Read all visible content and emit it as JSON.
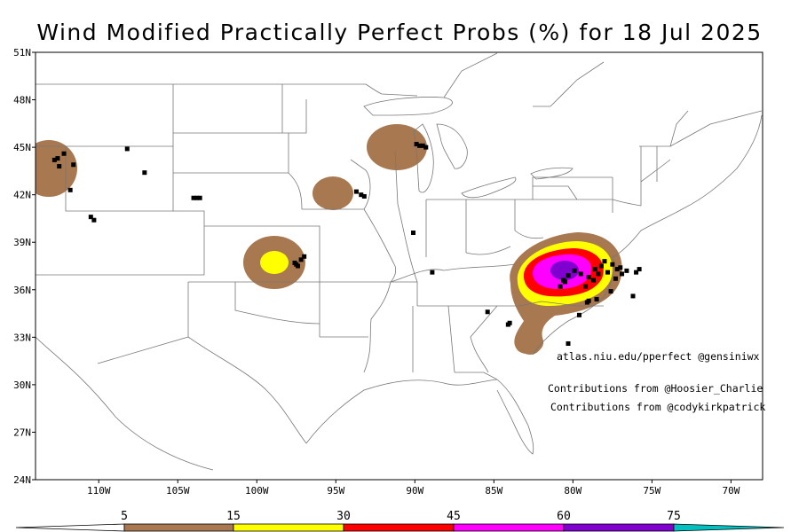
{
  "title": "Wind Modified Practically Perfect Probs (%) for 18 Jul 2025",
  "credits": {
    "site": "atlas.niu.edu/pperfect @gensiniwx",
    "contrib1": "Contributions from @Hoosier_Charlie",
    "contrib2": "Contributions from @codykirkpatrick"
  },
  "map": {
    "lat_ticks": [
      "51N",
      "48N",
      "45N",
      "42N",
      "39N",
      "36N",
      "33N",
      "30N",
      "27N",
      "24N"
    ],
    "lon_ticks": [
      "110W",
      "105W",
      "100W",
      "95W",
      "90W",
      "85W",
      "80W",
      "75W",
      "70W"
    ],
    "lon_range": [
      -114,
      -68
    ],
    "lat_range": [
      24,
      51
    ]
  },
  "colorbar": {
    "labels": [
      "5",
      "15",
      "30",
      "45",
      "60",
      "75"
    ],
    "colors": [
      "#a87850",
      "#ffff00",
      "#ff0000",
      "#ff00ff",
      "#8000d0",
      "#00c0c0"
    ]
  },
  "probability_areas": [
    {
      "region": "central-plains",
      "lon": -97.3,
      "lat": 37.7,
      "max_level": 15
    },
    {
      "region": "iowa",
      "lon": -93.5,
      "lat": 42.1,
      "max_level": 5
    },
    {
      "region": "wisconsin",
      "lon": -89.6,
      "lat": 45.1,
      "max_level": 5
    },
    {
      "region": "idaho-montana",
      "lon": -112.4,
      "lat": 43.7,
      "max_level": 5
    },
    {
      "region": "mid-atlantic",
      "lon": -77.8,
      "lat": 37.2,
      "max_level": 60
    },
    {
      "region": "south-carolina",
      "lon": -80.1,
      "lat": 32.7,
      "max_level": 5
    }
  ],
  "reports": [
    [
      -112.8,
      44.2
    ],
    [
      -112.5,
      43.8
    ],
    [
      -112.2,
      44.6
    ],
    [
      -111.6,
      43.9
    ],
    [
      -112.6,
      44.3
    ],
    [
      -108.2,
      44.9
    ],
    [
      -107.1,
      43.4
    ],
    [
      -111.8,
      42.3
    ],
    [
      -110.5,
      40.6
    ],
    [
      -110.3,
      40.4
    ],
    [
      -104.0,
      41.8
    ],
    [
      -103.8,
      41.8
    ],
    [
      -103.6,
      41.8
    ],
    [
      -97.4,
      37.5
    ],
    [
      -97.6,
      37.7
    ],
    [
      -97.2,
      37.9
    ],
    [
      -97.0,
      38.1
    ],
    [
      -97.5,
      37.6
    ],
    [
      -93.7,
      42.2
    ],
    [
      -93.4,
      42.0
    ],
    [
      -93.2,
      41.9
    ],
    [
      -89.9,
      45.2
    ],
    [
      -89.5,
      45.1
    ],
    [
      -89.3,
      45.0
    ],
    [
      -89.7,
      45.1
    ],
    [
      -90.1,
      39.6
    ],
    [
      -88.9,
      37.1
    ],
    [
      -85.4,
      34.6
    ],
    [
      -84.0,
      33.9
    ],
    [
      -84.1,
      33.8
    ],
    [
      -80.8,
      36.2
    ],
    [
      -80.6,
      36.6
    ],
    [
      -80.3,
      36.9
    ],
    [
      -79.9,
      37.2
    ],
    [
      -79.5,
      37.0
    ],
    [
      -79.0,
      36.8
    ],
    [
      -78.6,
      37.3
    ],
    [
      -78.2,
      37.5
    ],
    [
      -77.8,
      37.1
    ],
    [
      -77.5,
      37.6
    ],
    [
      -77.2,
      37.3
    ],
    [
      -76.9,
      37.0
    ],
    [
      -76.6,
      37.2
    ],
    [
      -78.0,
      37.8
    ],
    [
      -78.4,
      37.0
    ],
    [
      -77.3,
      36.7
    ],
    [
      -79.2,
      36.2
    ],
    [
      -79.0,
      35.3
    ],
    [
      -78.5,
      35.4
    ],
    [
      -77.6,
      35.9
    ],
    [
      -76.2,
      35.6
    ],
    [
      -79.6,
      34.4
    ],
    [
      -80.3,
      32.6
    ],
    [
      -80.5,
      36.5
    ],
    [
      -78.7,
      36.6
    ],
    [
      -77.0,
      37.4
    ],
    [
      -76.0,
      37.1
    ],
    [
      -75.8,
      37.3
    ],
    [
      -79.1,
      35.2
    ]
  ]
}
